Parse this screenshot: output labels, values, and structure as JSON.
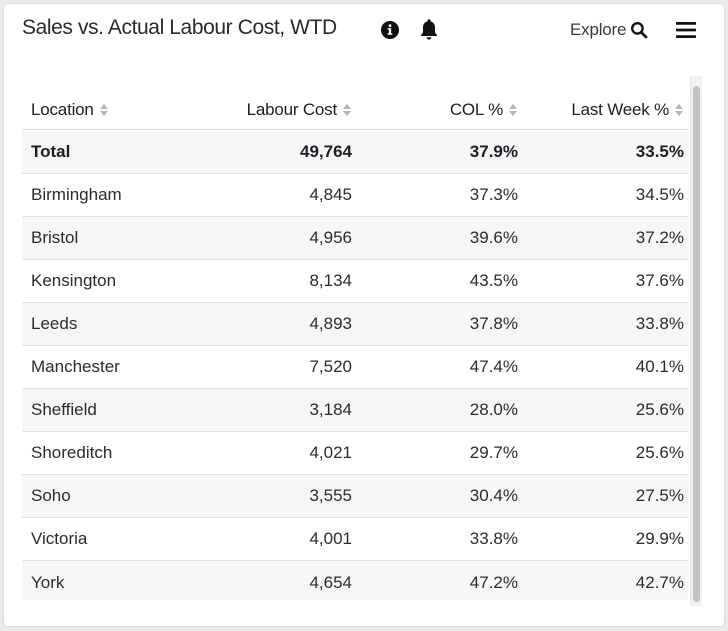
{
  "header": {
    "title": "Sales vs. Actual Labour Cost, WTD",
    "explore_label": "Explore"
  },
  "icons": {
    "info": "info-icon",
    "bell": "bell-icon",
    "search": "search-icon",
    "menu": "hamburger-menu-icon",
    "sort": "sort-icon"
  },
  "table": {
    "columns": [
      "Location",
      "Labour Cost",
      "COL %",
      "Last Week %"
    ],
    "total": {
      "location": "Total",
      "labour_cost": "49,764",
      "col": "37.9%",
      "last_week": "33.5%"
    },
    "rows": [
      {
        "location": "Birmingham",
        "labour_cost": "4,845",
        "col": "37.3%",
        "last_week": "34.5%"
      },
      {
        "location": "Bristol",
        "labour_cost": "4,956",
        "col": "39.6%",
        "last_week": "37.2%"
      },
      {
        "location": "Kensington",
        "labour_cost": "8,134",
        "col": "43.5%",
        "last_week": "37.6%"
      },
      {
        "location": "Leeds",
        "labour_cost": "4,893",
        "col": "37.8%",
        "last_week": "33.8%"
      },
      {
        "location": "Manchester",
        "labour_cost": "7,520",
        "col": "47.4%",
        "last_week": "40.1%"
      },
      {
        "location": "Sheffield",
        "labour_cost": "3,184",
        "col": "28.0%",
        "last_week": "25.6%"
      },
      {
        "location": "Shoreditch",
        "labour_cost": "4,021",
        "col": "29.7%",
        "last_week": "25.6%"
      },
      {
        "location": "Soho",
        "labour_cost": "3,555",
        "col": "30.4%",
        "last_week": "27.5%"
      },
      {
        "location": "Victoria",
        "labour_cost": "4,001",
        "col": "33.8%",
        "last_week": "29.9%"
      },
      {
        "location": "York",
        "labour_cost": "4,654",
        "col": "47.2%",
        "last_week": "42.7%"
      }
    ]
  },
  "colors": {
    "row_alt": "#f6f6f8",
    "border": "#e2e2e6",
    "text": "#2b2b2e",
    "scroll_thumb": "#c3c3c7"
  }
}
